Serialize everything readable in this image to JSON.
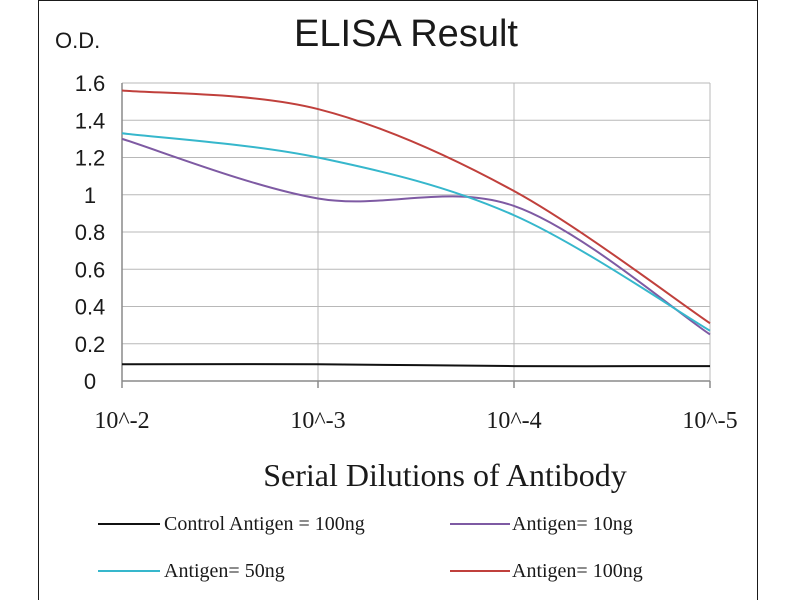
{
  "chart_data": {
    "type": "line",
    "title": "ELISA Result",
    "ylabel": "O.D.",
    "xlabel": "Serial Dilutions  of Antibody",
    "x": [
      "10^-2",
      "10^-3",
      "10^-4",
      "10^-5"
    ],
    "ylim": [
      0,
      1.6
    ],
    "yticks": [
      "0",
      "0.2",
      "0.4",
      "0.6",
      "0.8",
      "1",
      "1.2",
      "1.4",
      "1.6"
    ],
    "grid": true,
    "legend_position": "bottom",
    "series": [
      {
        "name": "Control Antigen = 100ng",
        "color": "#111111",
        "values": [
          0.09,
          0.09,
          0.08,
          0.08
        ]
      },
      {
        "name": "Antigen= 10ng",
        "color": "#7e5aa3",
        "values": [
          1.3,
          0.98,
          0.94,
          0.25
        ]
      },
      {
        "name": "Antigen= 50ng",
        "color": "#36b7cc",
        "values": [
          1.33,
          1.2,
          0.89,
          0.27
        ]
      },
      {
        "name": "Antigen= 100ng",
        "color": "#c0403c",
        "values": [
          1.56,
          1.46,
          1.02,
          0.31
        ]
      }
    ]
  }
}
